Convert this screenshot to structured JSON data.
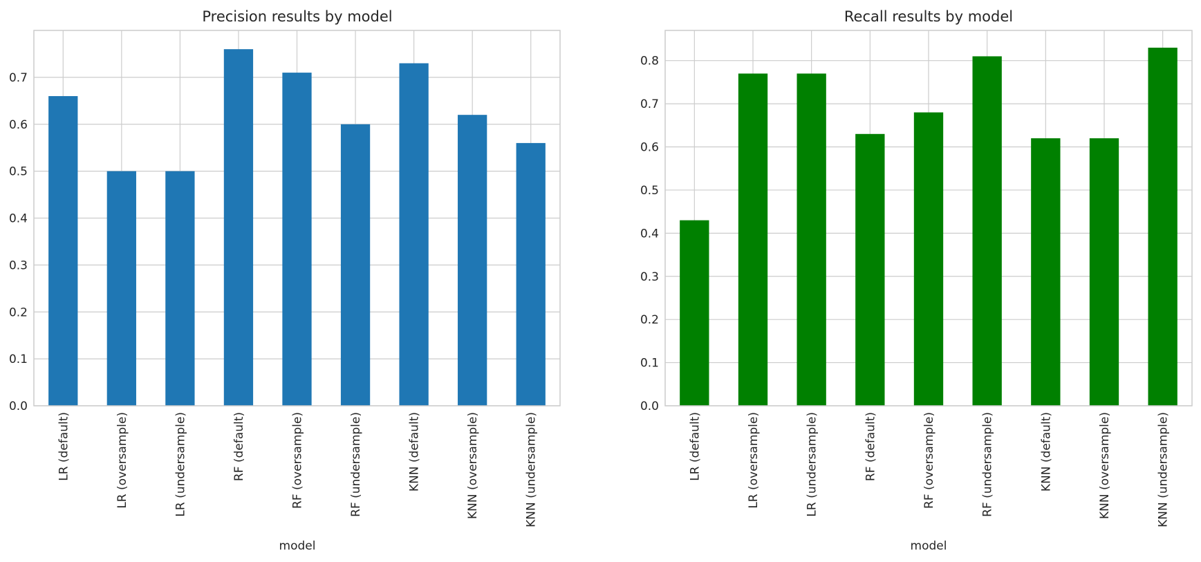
{
  "chart_data": [
    {
      "type": "bar",
      "title": "Precision results by model",
      "xlabel": "model",
      "ylabel": "",
      "categories": [
        "LR (default)",
        "LR (oversample)",
        "LR (undersample)",
        "RF (default)",
        "RF (oversample)",
        "RF (undersample)",
        "KNN (default)",
        "KNN (oversample)",
        "KNN (undersample)"
      ],
      "values": [
        0.66,
        0.5,
        0.5,
        0.76,
        0.71,
        0.6,
        0.73,
        0.62,
        0.56
      ],
      "ylim": [
        0,
        0.8
      ],
      "yticks": [
        "0.0",
        "0.1",
        "0.2",
        "0.3",
        "0.4",
        "0.5",
        "0.6",
        "0.7"
      ],
      "color": "#1f77b4",
      "grid": true,
      "legend": "none"
    },
    {
      "type": "bar",
      "title": "Recall results by model",
      "xlabel": "model",
      "ylabel": "",
      "categories": [
        "LR (default)",
        "LR (oversample)",
        "LR (undersample)",
        "RF (default)",
        "RF (oversample)",
        "RF (undersample)",
        "KNN (default)",
        "KNN (oversample)",
        "KNN (undersample)"
      ],
      "values": [
        0.43,
        0.77,
        0.77,
        0.63,
        0.68,
        0.81,
        0.62,
        0.62,
        0.83
      ],
      "ylim": [
        0,
        0.87
      ],
      "yticks": [
        "0.0",
        "0.1",
        "0.2",
        "0.3",
        "0.4",
        "0.5",
        "0.6",
        "0.7",
        "0.8"
      ],
      "color": "#008000",
      "grid": true,
      "legend": "none"
    }
  ]
}
